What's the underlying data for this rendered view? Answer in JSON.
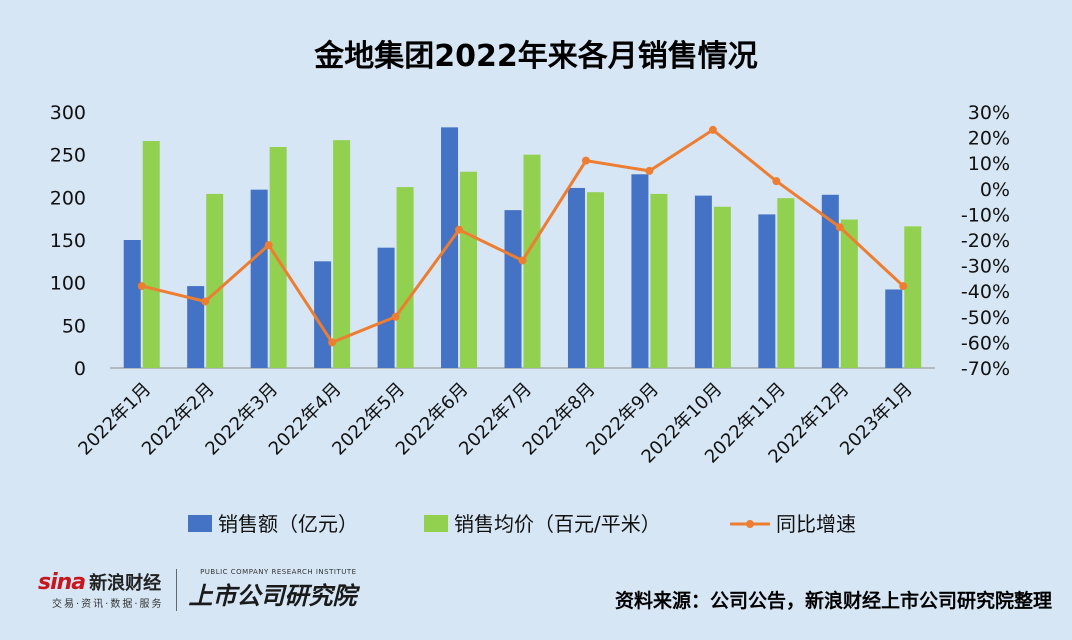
{
  "chart_data": {
    "type": "bar+line",
    "title": "金地集团2022年来各月销售情况",
    "categories": [
      "2022年1月",
      "2022年2月",
      "2022年3月",
      "2022年4月",
      "2022年5月",
      "2022年6月",
      "2022年7月",
      "2022年8月",
      "2022年9月",
      "2022年10月",
      "2022年11月",
      "2022年12月",
      "2023年1月"
    ],
    "series": [
      {
        "name": "销售额（亿元）",
        "type": "bar",
        "axis": "left",
        "color": "#4472c4",
        "values": [
          150,
          96,
          209,
          125,
          141,
          282,
          185,
          211,
          227,
          202,
          180,
          203,
          92
        ]
      },
      {
        "name": "销售均价（百元/平米）",
        "type": "bar",
        "axis": "left",
        "color": "#92d050",
        "values": [
          266,
          204,
          259,
          267,
          212,
          230,
          250,
          206,
          204,
          189,
          199,
          174,
          166
        ]
      },
      {
        "name": "同比增速",
        "type": "line",
        "axis": "right",
        "color": "#ed7d31",
        "values": [
          -38,
          -44,
          -22,
          -60,
          -50,
          -16,
          -28,
          11,
          7,
          23,
          3,
          -15,
          -38
        ]
      }
    ],
    "y_left": {
      "min": 0,
      "max": 300,
      "step": 50,
      "ticks": [
        "0",
        "50",
        "100",
        "150",
        "200",
        "250",
        "300"
      ]
    },
    "y_right": {
      "min": -70,
      "max": 30,
      "step": 10,
      "ticks": [
        "-70%",
        "-60%",
        "-50%",
        "-40%",
        "-30%",
        "-20%",
        "-10%",
        "0%",
        "10%",
        "20%",
        "30%"
      ]
    },
    "grid": false,
    "legend_position": "bottom"
  },
  "footer": {
    "sina_brand": "sina",
    "sina_name": "新浪财经",
    "sina_sub": "交易·资讯·数据·服务",
    "inst_en": "PUBLIC COMPANY RESEARCH INSTITUTE",
    "inst_cn": "上市公司研究院",
    "source": "资料来源：公司公告，新浪财经上市公司研究院整理"
  },
  "colors": {
    "background": "#d7e6f4",
    "bar1": "#4472c4",
    "bar2": "#92d050",
    "line": "#ed7d31"
  }
}
